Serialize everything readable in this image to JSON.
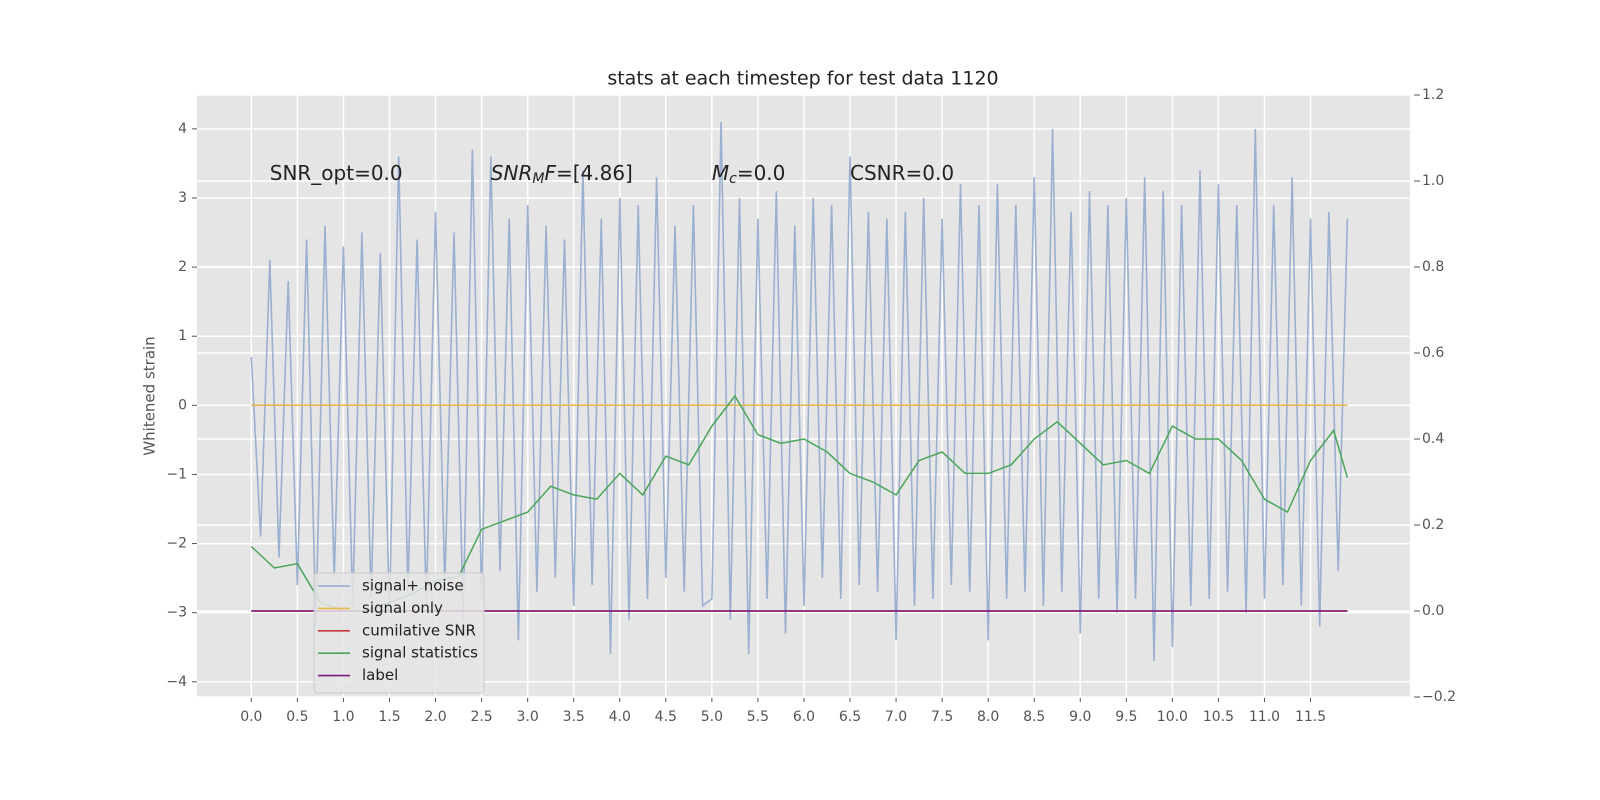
{
  "chart_data": {
    "type": "line",
    "title": "stats at each timestep for test data 1120",
    "y_label": "Whitened strain",
    "xlim": [
      -0.59,
      12.58
    ],
    "ylim": [
      -4.22,
      4.49
    ],
    "y2lim": [
      -0.2,
      1.2
    ],
    "xticks": [
      {
        "value": 0,
        "label": "0.0"
      },
      0.5,
      {
        "value": 1,
        "label": "1.0"
      },
      1.5,
      {
        "value": 2,
        "label": "2.0"
      },
      2.5,
      {
        "value": 3,
        "label": "3.0"
      },
      3.5,
      {
        "value": 4,
        "label": "4.0"
      },
      4.5,
      {
        "value": 5,
        "label": "5.0"
      },
      5.5,
      {
        "value": 6,
        "label": "6.0"
      },
      6.5,
      {
        "value": 7,
        "label": "7.0"
      },
      7.5,
      {
        "value": 8,
        "label": "8.0"
      },
      8.5,
      {
        "value": 9,
        "label": "9.0"
      },
      9.5,
      {
        "value": 10,
        "label": "10.0"
      },
      10.5,
      {
        "value": 11,
        "label": "11.0"
      },
      11.5
    ],
    "yticks": [
      {
        "value": -4,
        "label": "−4"
      },
      {
        "value": -3,
        "label": "−3"
      },
      {
        "value": -2,
        "label": "−2"
      },
      {
        "value": -1,
        "label": "−1"
      },
      0,
      1,
      2,
      3,
      4
    ],
    "y2ticks": [
      {
        "value": -0.2,
        "label": "−0.2"
      },
      {
        "value": 0,
        "label": "0.0"
      },
      0.2,
      0.4,
      0.6,
      0.8,
      {
        "value": 1,
        "label": "1.0"
      },
      1.2
    ],
    "grid": true,
    "legend": "lower left",
    "annotations": [
      [
        {
          "text": "SNR_opt=0.0"
        }
      ],
      [
        {
          "text": "SNR",
          "italic": true
        },
        {
          "text": "M",
          "italic": true,
          "sub": true
        },
        {
          "text": "F",
          "italic": true
        },
        {
          "text": "=[4.86]"
        }
      ],
      [
        {
          "text": "M",
          "italic": true
        },
        {
          "text": "c",
          "italic": true,
          "sub": true
        },
        {
          "text": "=0.0"
        }
      ],
      [
        {
          "text": "CSNR=0.0"
        }
      ]
    ],
    "series": [
      {
        "name": "signal+ noise",
        "color": "#92a8cd",
        "x": [
          0.0,
          0.1,
          0.2,
          0.3,
          0.4,
          0.5,
          0.6,
          0.7,
          0.8,
          0.9,
          1.0,
          1.1,
          1.2,
          1.3,
          1.4,
          1.5,
          1.6,
          1.7,
          1.8,
          1.9,
          2.0,
          2.1,
          2.2,
          2.3,
          2.4,
          2.5,
          2.6,
          2.7,
          2.8,
          2.9,
          3.0,
          3.1,
          3.2,
          3.3,
          3.4,
          3.5,
          3.6,
          3.7,
          3.8,
          3.9,
          4.0,
          4.1,
          4.2,
          4.3,
          4.4,
          4.5,
          4.6,
          4.7,
          4.8,
          4.9,
          5.0,
          5.1,
          5.2,
          5.3,
          5.4,
          5.5,
          5.6,
          5.7,
          5.8,
          5.9,
          6.0,
          6.1,
          6.2,
          6.3,
          6.4,
          6.5,
          6.6,
          6.7,
          6.8,
          6.9,
          7.0,
          7.1,
          7.2,
          7.3,
          7.4,
          7.5,
          7.6,
          7.7,
          7.8,
          7.9,
          8.0,
          8.1,
          8.2,
          8.3,
          8.4,
          8.5,
          8.6,
          8.7,
          8.8,
          8.9,
          9.0,
          9.1,
          9.2,
          9.3,
          9.4,
          9.5,
          9.6,
          9.7,
          9.8,
          9.9,
          10.0,
          10.1,
          10.2,
          10.3,
          10.4,
          10.5,
          10.6,
          10.7,
          10.8,
          10.9,
          11.0,
          11.1,
          11.2,
          11.3,
          11.4,
          11.5,
          11.6,
          11.7,
          11.8,
          11.9
        ],
        "values": [
          0.7,
          -1.9,
          2.1,
          -2.2,
          1.8,
          -2.6,
          2.4,
          -3.2,
          2.6,
          -2.5,
          2.3,
          -2.9,
          2.5,
          -2.8,
          2.2,
          -3.0,
          3.6,
          -2.7,
          2.4,
          -2.9,
          2.8,
          -2.6,
          2.5,
          -3.1,
          3.7,
          -2.8,
          3.6,
          -2.4,
          2.7,
          -3.4,
          2.9,
          -2.7,
          2.6,
          -2.5,
          2.4,
          -2.9,
          3.4,
          -2.6,
          2.7,
          -3.6,
          3.0,
          -3.1,
          2.9,
          -2.8,
          3.3,
          -2.5,
          2.6,
          -2.7,
          2.9,
          -2.9,
          -2.8,
          4.1,
          -3.1,
          3.0,
          -3.6,
          2.7,
          -2.8,
          3.1,
          -3.3,
          2.6,
          -2.9,
          3.0,
          -2.5,
          2.9,
          -2.8,
          3.6,
          -2.6,
          2.8,
          -2.7,
          2.7,
          -3.4,
          2.8,
          -2.9,
          3.0,
          -2.8,
          2.7,
          -2.6,
          3.2,
          -2.7,
          2.9,
          -3.4,
          3.2,
          -2.8,
          2.9,
          -2.7,
          3.3,
          -2.9,
          4.0,
          -2.7,
          2.8,
          -3.3,
          3.1,
          -2.8,
          2.9,
          -3.0,
          3.0,
          -2.8,
          3.3,
          -3.7,
          3.1,
          -3.5,
          2.9,
          -2.9,
          3.4,
          -2.8,
          3.2,
          -2.7,
          2.9,
          -3.0,
          4.0,
          -2.8,
          2.9,
          -2.6,
          3.3,
          -2.9,
          2.7,
          -3.2,
          2.8,
          -2.4,
          2.7
        ]
      },
      {
        "name": "signal only",
        "color": "#e8b84a",
        "x": [
          0.0,
          11.9
        ],
        "values": [
          0,
          0
        ]
      },
      {
        "name": "cumilative SNR",
        "color": "#c8383a",
        "axis": "y2",
        "x": [
          0.0,
          11.9
        ],
        "values": [
          0,
          0
        ]
      },
      {
        "name": "signal statistics",
        "color": "#4aa55a",
        "axis": "y2",
        "x": [
          0.0,
          0.25,
          0.5,
          0.75,
          1.0,
          1.25,
          1.5,
          1.75,
          2.0,
          2.25,
          2.5,
          2.75,
          3.0,
          3.25,
          3.5,
          3.75,
          4.0,
          4.25,
          4.5,
          4.75,
          5.0,
          5.25,
          5.5,
          5.75,
          6.0,
          6.25,
          6.5,
          6.75,
          7.0,
          7.25,
          7.5,
          7.75,
          8.0,
          8.25,
          8.5,
          8.75,
          9.0,
          9.25,
          9.5,
          9.75,
          10.0,
          10.25,
          10.5,
          10.75,
          11.0,
          11.25,
          11.5,
          11.75,
          11.9
        ],
        "values": [
          0.15,
          0.1,
          0.11,
          0.02,
          0.0,
          0.0,
          0.02,
          0.04,
          0.07,
          0.08,
          0.19,
          0.21,
          0.23,
          0.29,
          0.27,
          0.26,
          0.32,
          0.27,
          0.36,
          0.34,
          0.43,
          0.5,
          0.41,
          0.39,
          0.4,
          0.37,
          0.32,
          0.3,
          0.27,
          0.35,
          0.37,
          0.32,
          0.32,
          0.34,
          0.4,
          0.44,
          0.39,
          0.34,
          0.35,
          0.32,
          0.43,
          0.4,
          0.4,
          0.35,
          0.26,
          0.23,
          0.35,
          0.42,
          0.31
        ]
      },
      {
        "name": "label",
        "color": "#7b1a7e",
        "axis": "y2",
        "x": [
          0.0,
          11.9
        ],
        "values": [
          0,
          0
        ]
      }
    ]
  }
}
